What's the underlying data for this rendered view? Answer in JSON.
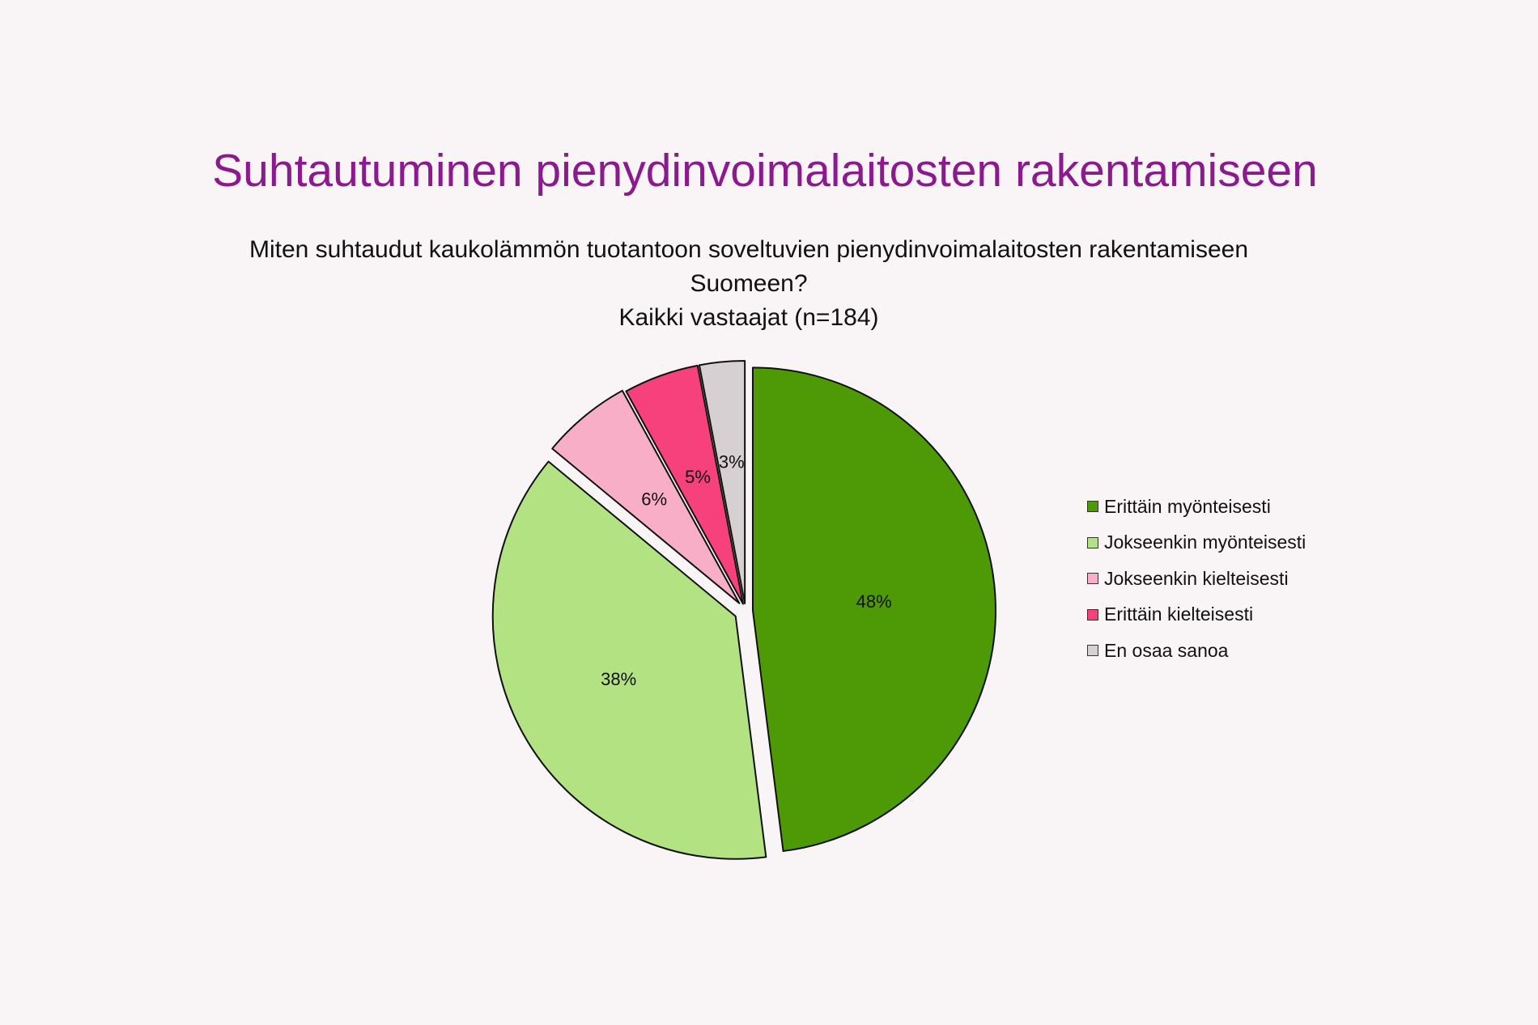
{
  "chart_data": {
    "type": "pie",
    "title": "Suhtautuminen pienydinvoimalaitosten rakentamiseen",
    "subtitle_lines": [
      "Miten suhtaudut kaukolämmön tuotantoon soveltuvien pienydinvoimalaitosten rakentamiseen",
      "Suomeen?",
      "Kaikki vastaajat (n=184)"
    ],
    "unit": "%",
    "legend_position": "right",
    "slices": [
      {
        "label": "Erittäin myönteisesti",
        "value": 48,
        "color": "#4e9a06"
      },
      {
        "label": "Jokseenkin myönteisesti",
        "value": 38,
        "color": "#b3e283"
      },
      {
        "label": "Jokseenkin kielteisesti",
        "value": 6,
        "color": "#f9aec8"
      },
      {
        "label": "Erittäin kielteisesti",
        "value": 5,
        "color": "#f7417c"
      },
      {
        "label": "En osaa sanoa",
        "value": 3,
        "color": "#d6d0d2"
      }
    ]
  }
}
